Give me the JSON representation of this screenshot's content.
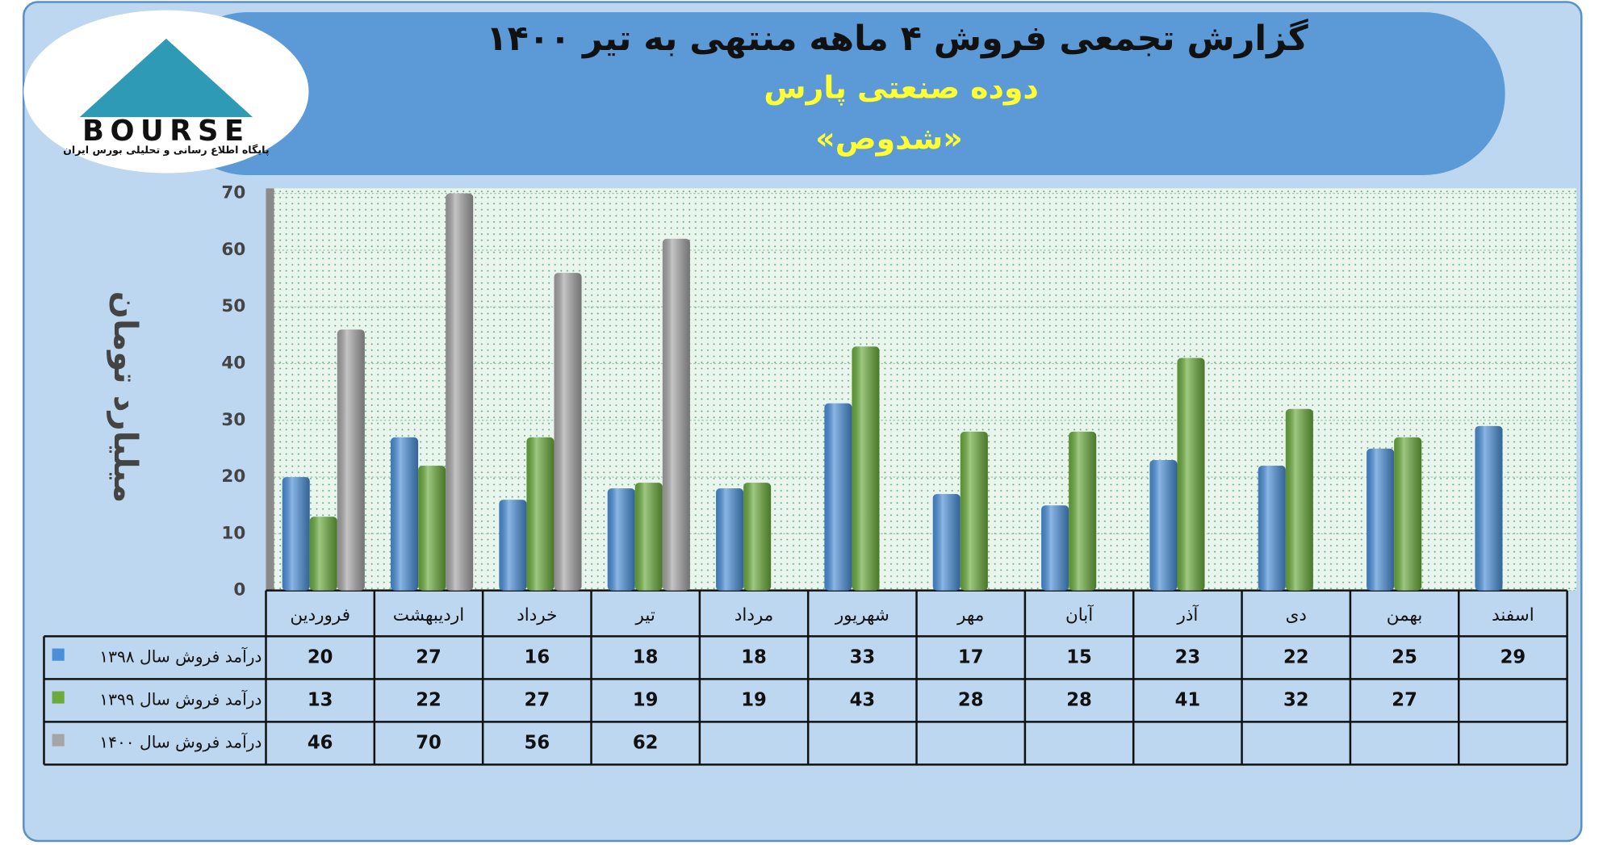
{
  "logo": {
    "text": "BOURSE",
    "caption": "پایگاه اطلاع رسانی و تحلیلی بورس ایران"
  },
  "chart_data": {
    "type": "bar",
    "title": "گزارش تجمعی فروش ۴ ماهه منتهی به تیر ۱۴۰۰",
    "subtitle": "دوده صنعتی پارس",
    "symbol": "«شدوص»",
    "y_label": "میلیارد تومان",
    "categories": [
      "فروردین",
      "اردیبهشت",
      "خرداد",
      "تیر",
      "مرداد",
      "شهریور",
      "مهر",
      "آبان",
      "آذر",
      "دی",
      "بهمن",
      "اسفند"
    ],
    "series": [
      {
        "name": "درآمد فروش سال ۱۳۹۸",
        "color": "#4a8fd8",
        "values": [
          20,
          27,
          16,
          18,
          18,
          33,
          17,
          15,
          23,
          22,
          25,
          29
        ]
      },
      {
        "name": "درآمد فروش سال ۱۳۹۹",
        "color": "#6aab3c",
        "values": [
          13,
          22,
          27,
          19,
          19,
          43,
          28,
          28,
          41,
          32,
          27,
          null
        ]
      },
      {
        "name": "درآمد فروش سال ۱۴۰۰",
        "color": "#a5a5a5",
        "values": [
          46,
          70,
          56,
          62,
          null,
          null,
          null,
          null,
          null,
          null,
          null,
          null
        ]
      }
    ],
    "ylim": [
      0,
      70
    ],
    "yticks": [
      0,
      10,
      20,
      30,
      40,
      50,
      60,
      70
    ],
    "grid": true
  }
}
